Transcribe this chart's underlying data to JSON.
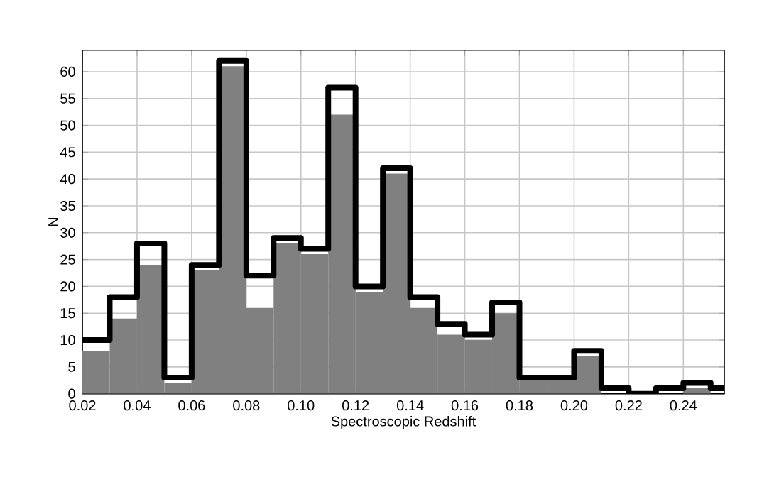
{
  "chart_data": {
    "type": "histogram",
    "xlabel": "Spectroscopic Redshift",
    "ylabel": "N",
    "bins": [
      0.02,
      0.03,
      0.04,
      0.05,
      0.06,
      0.07,
      0.08,
      0.09,
      0.1,
      0.11,
      0.12,
      0.13,
      0.14,
      0.15,
      0.16,
      0.17,
      0.18,
      0.19,
      0.2,
      0.21,
      0.22,
      0.23,
      0.24,
      0.25
    ],
    "series": [
      {
        "color": "#808080",
        "values": [
          8,
          14,
          24,
          2,
          23,
          61,
          16,
          28,
          26,
          52,
          19,
          41,
          16,
          11,
          10,
          15,
          3,
          3,
          7,
          0,
          0,
          0,
          1
        ]
      },
      {
        "type": "step",
        "color": "#000000",
        "x": [
          0.02,
          0.03,
          0.04,
          0.05,
          0.06,
          0.07,
          0.08,
          0.09,
          0.1,
          0.11,
          0.12,
          0.13,
          0.14,
          0.15,
          0.16,
          0.17,
          0.18,
          0.19,
          0.2,
          0.21,
          0.22,
          0.23,
          0.24,
          0.25,
          0.255
        ],
        "values": [
          10,
          18,
          28,
          3,
          24,
          62,
          22,
          29,
          27,
          57,
          20,
          42,
          18,
          13,
          11,
          17,
          3,
          3,
          8,
          1,
          0,
          1,
          2,
          1,
          1
        ]
      }
    ],
    "xlim": [
      0.02,
      0.255
    ],
    "ylim": [
      0,
      64
    ],
    "xticks": [
      0.02,
      0.04,
      0.06,
      0.08,
      {
        "value": 0.1,
        "label": "0.10"
      },
      0.12,
      0.14,
      0.16,
      0.18,
      {
        "value": 0.2,
        "label": "0.20"
      },
      0.22,
      0.24
    ],
    "yticks": [
      0,
      5,
      10,
      15,
      20,
      25,
      30,
      35,
      40,
      45,
      50,
      55,
      60
    ],
    "grid": true
  }
}
